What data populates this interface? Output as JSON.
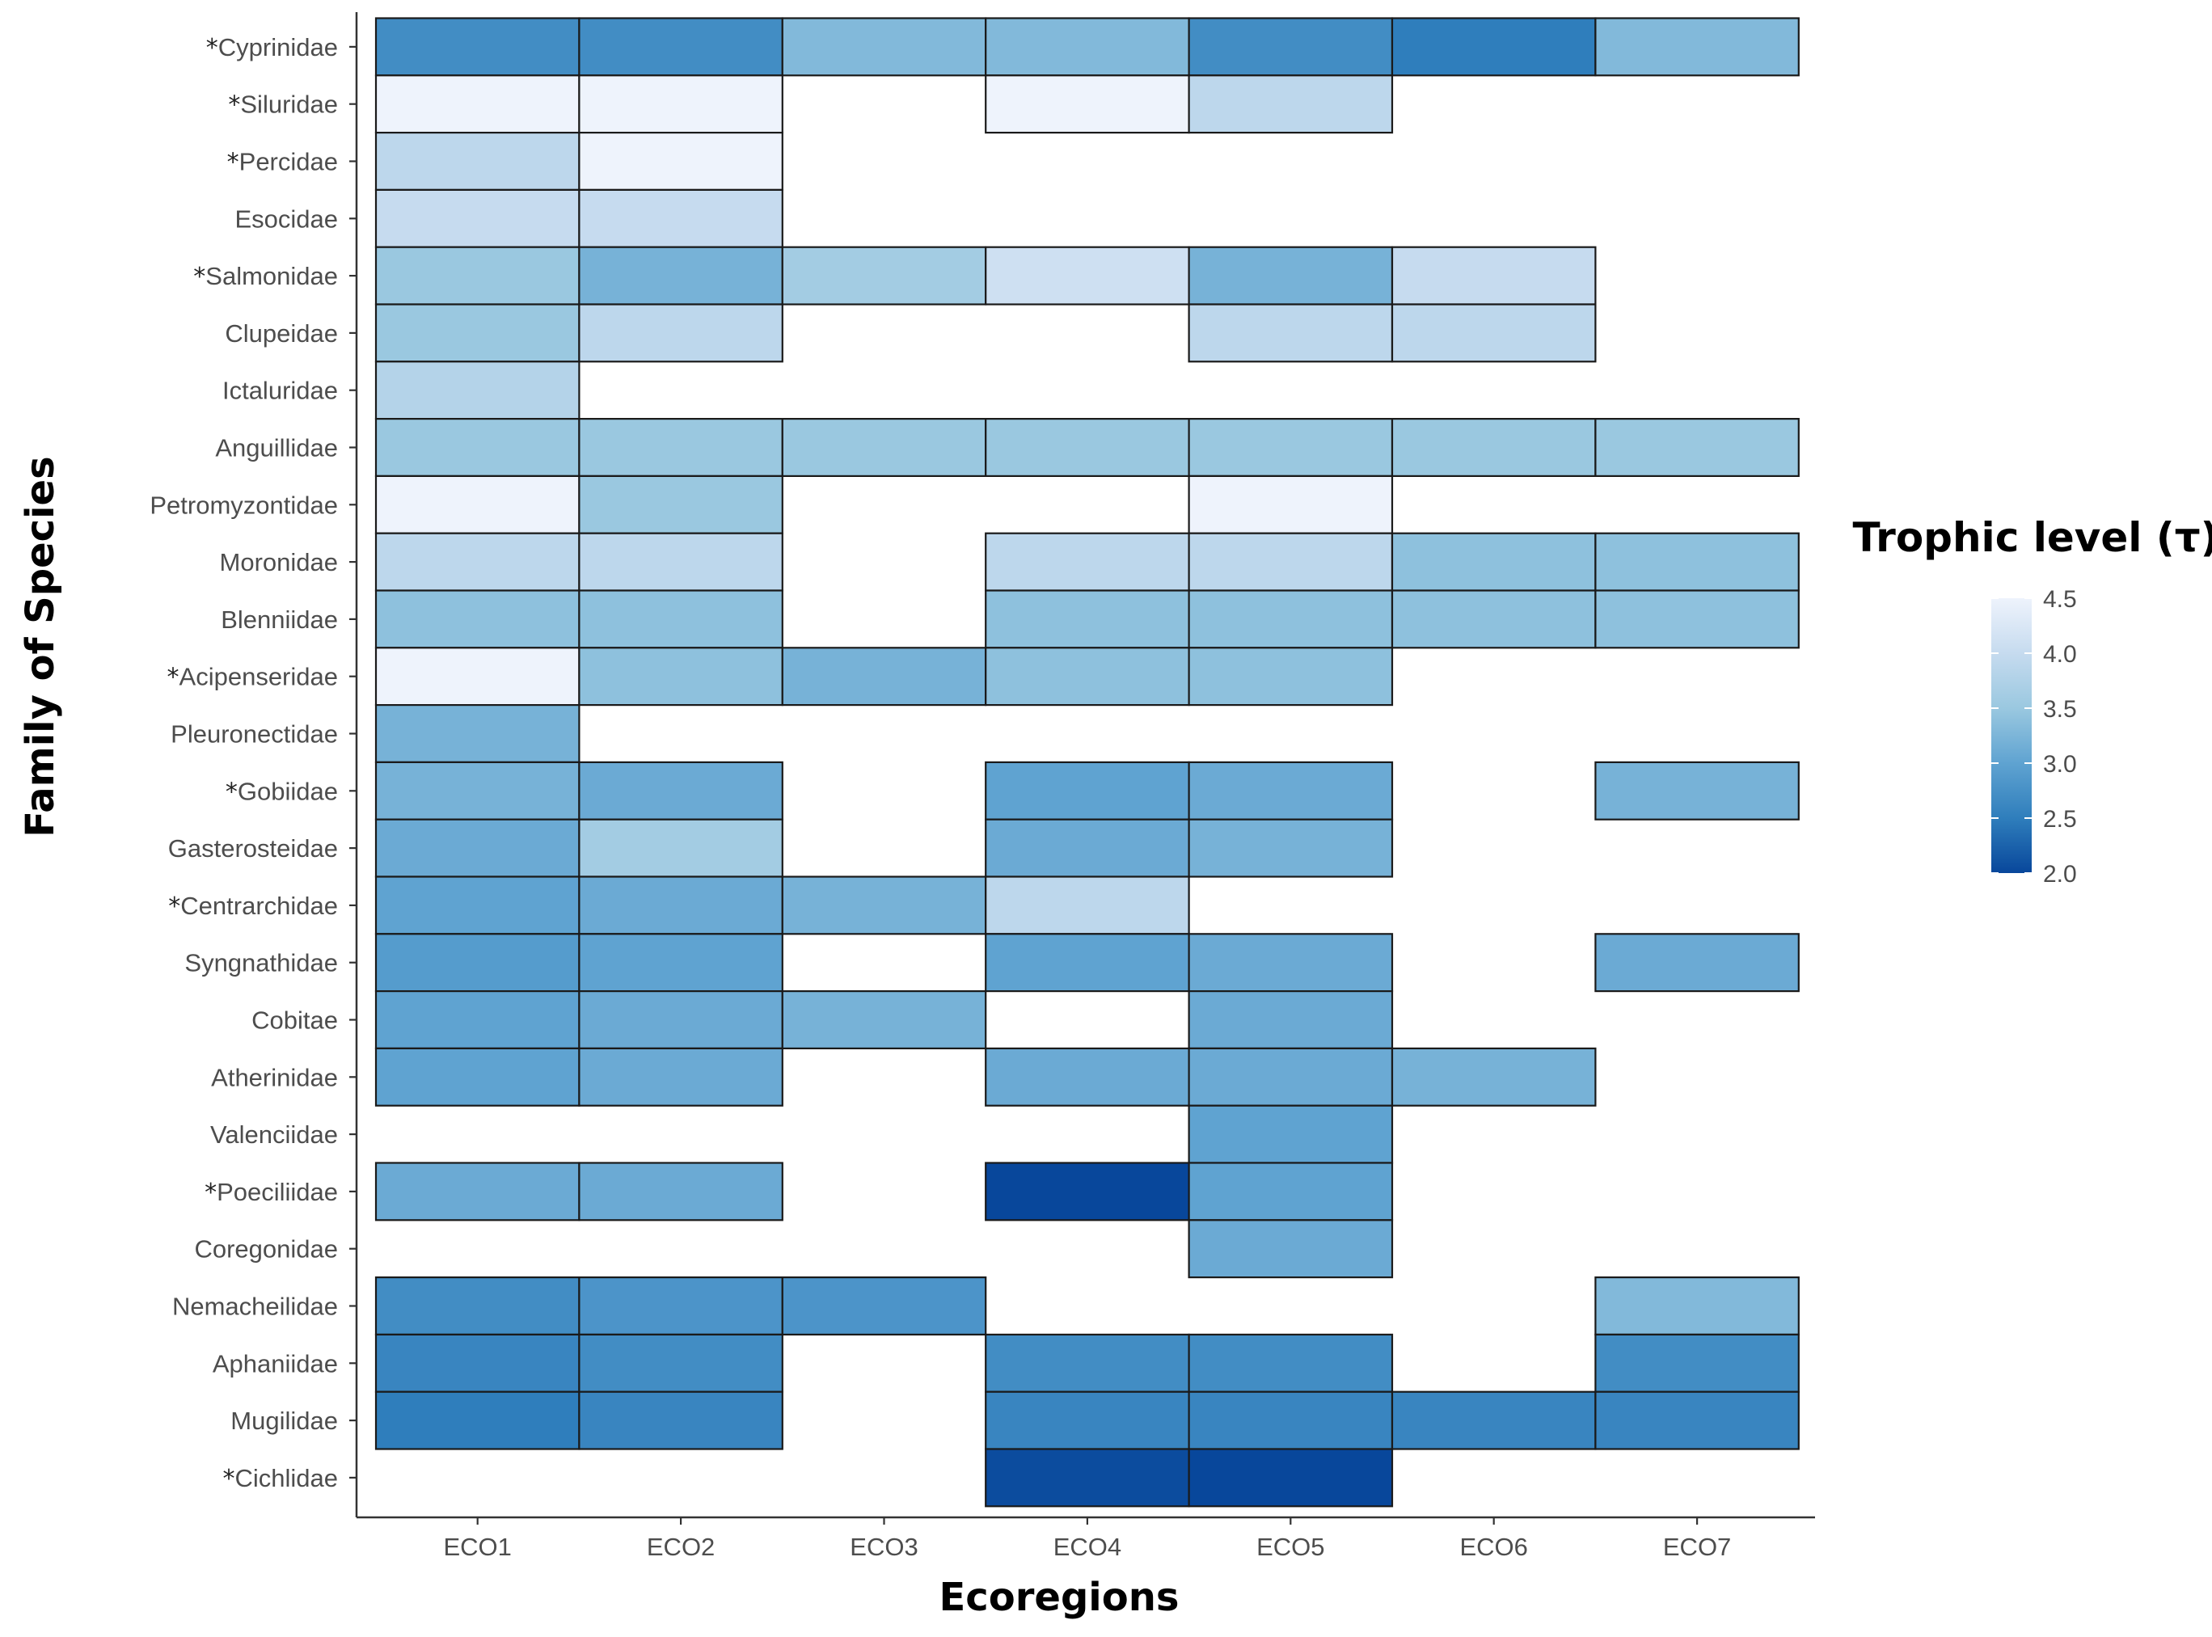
{
  "chart_data": {
    "type": "heatmap",
    "xlabel": "Ecoregions",
    "ylabel": "Family of Species",
    "x_categories": [
      "ECO1",
      "ECO2",
      "ECO3",
      "ECO4",
      "ECO5",
      "ECO6",
      "ECO7"
    ],
    "y_categories": [
      {
        "name": "Cyprinidae",
        "marked": true
      },
      {
        "name": "Siluridae",
        "marked": true
      },
      {
        "name": "Percidae",
        "marked": true
      },
      {
        "name": "Esocidae",
        "marked": false
      },
      {
        "name": "Salmonidae",
        "marked": true
      },
      {
        "name": "Clupeidae",
        "marked": false
      },
      {
        "name": "Ictaluridae",
        "marked": false
      },
      {
        "name": "Anguillidae",
        "marked": false
      },
      {
        "name": "Petromyzontidae",
        "marked": false
      },
      {
        "name": "Moronidae",
        "marked": false
      },
      {
        "name": "Blenniidae",
        "marked": false
      },
      {
        "name": "Acipenseridae",
        "marked": true
      },
      {
        "name": "Pleuronectidae",
        "marked": false
      },
      {
        "name": "Gobiidae",
        "marked": true
      },
      {
        "name": "Gasterosteidae",
        "marked": false
      },
      {
        "name": "Centrarchidae",
        "marked": true
      },
      {
        "name": "Syngnathidae",
        "marked": false
      },
      {
        "name": "Cobitae",
        "marked": false
      },
      {
        "name": "Atherinidae",
        "marked": false
      },
      {
        "name": "Valenciidae",
        "marked": false
      },
      {
        "name": "Poeciliidae",
        "marked": true
      },
      {
        "name": "Coregonidae",
        "marked": false
      },
      {
        "name": "Nemacheilidae",
        "marked": false
      },
      {
        "name": "Aphaniidae",
        "marked": false
      },
      {
        "name": "Mugilidae",
        "marked": false
      },
      {
        "name": "Cichlidae",
        "marked": true
      }
    ],
    "marker_symbol": "*",
    "values": [
      [
        2.7,
        2.7,
        3.3,
        3.3,
        2.7,
        2.5,
        3.3
      ],
      [
        4.5,
        4.5,
        null,
        4.5,
        3.9,
        null,
        null
      ],
      [
        3.9,
        4.5,
        null,
        null,
        null,
        null,
        null
      ],
      [
        4.0,
        4.0,
        null,
        null,
        null,
        null,
        null
      ],
      [
        3.5,
        3.2,
        3.6,
        4.1,
        3.2,
        4.0,
        null
      ],
      [
        3.5,
        3.9,
        null,
        null,
        3.9,
        3.9,
        null
      ],
      [
        3.8,
        null,
        null,
        null,
        null,
        null,
        null
      ],
      [
        3.5,
        3.5,
        3.5,
        3.5,
        3.5,
        3.5,
        3.5
      ],
      [
        4.5,
        3.5,
        null,
        null,
        4.5,
        null,
        null
      ],
      [
        3.9,
        3.9,
        null,
        3.9,
        3.9,
        3.4,
        3.4
      ],
      [
        3.4,
        3.4,
        null,
        3.4,
        3.4,
        3.4,
        3.4
      ],
      [
        4.5,
        3.4,
        3.2,
        3.4,
        3.4,
        null,
        null
      ],
      [
        3.2,
        null,
        null,
        null,
        null,
        null,
        null
      ],
      [
        3.2,
        3.1,
        null,
        3.0,
        3.1,
        null,
        3.2
      ],
      [
        3.1,
        3.6,
        null,
        3.1,
        3.2,
        null,
        null
      ],
      [
        3.0,
        3.1,
        3.2,
        3.9,
        null,
        null,
        null
      ],
      [
        2.9,
        3.0,
        null,
        3.0,
        3.1,
        null,
        3.1
      ],
      [
        3.0,
        3.1,
        3.2,
        null,
        3.1,
        null,
        null
      ],
      [
        3.0,
        3.1,
        null,
        3.1,
        3.1,
        3.2,
        null
      ],
      [
        null,
        null,
        null,
        null,
        3.0,
        null,
        null
      ],
      [
        3.1,
        3.1,
        null,
        2.0,
        3.0,
        null,
        null
      ],
      [
        null,
        null,
        null,
        null,
        3.1,
        null,
        null
      ],
      [
        2.7,
        2.8,
        2.8,
        null,
        null,
        null,
        3.3
      ],
      [
        2.6,
        2.7,
        null,
        2.7,
        2.7,
        null,
        2.7
      ],
      [
        2.5,
        2.6,
        null,
        2.6,
        2.6,
        2.6,
        2.6
      ],
      [
        null,
        null,
        null,
        2.05,
        2.0,
        null,
        null
      ]
    ],
    "legend": {
      "title": "Trophic level (τ)",
      "min": 2.0,
      "max": 4.5,
      "ticks": [
        "4.5",
        "4.0",
        "3.5",
        "3.0",
        "2.5",
        "2.0"
      ],
      "tick_values": [
        4.5,
        4.0,
        3.5,
        3.0,
        2.5,
        2.0
      ],
      "palette": [
        "#08479b",
        "#2f7ebc",
        "#5fa3d1",
        "#9ac8e0",
        "#c6dbef",
        "#eef3fc"
      ],
      "placement": "right"
    }
  }
}
